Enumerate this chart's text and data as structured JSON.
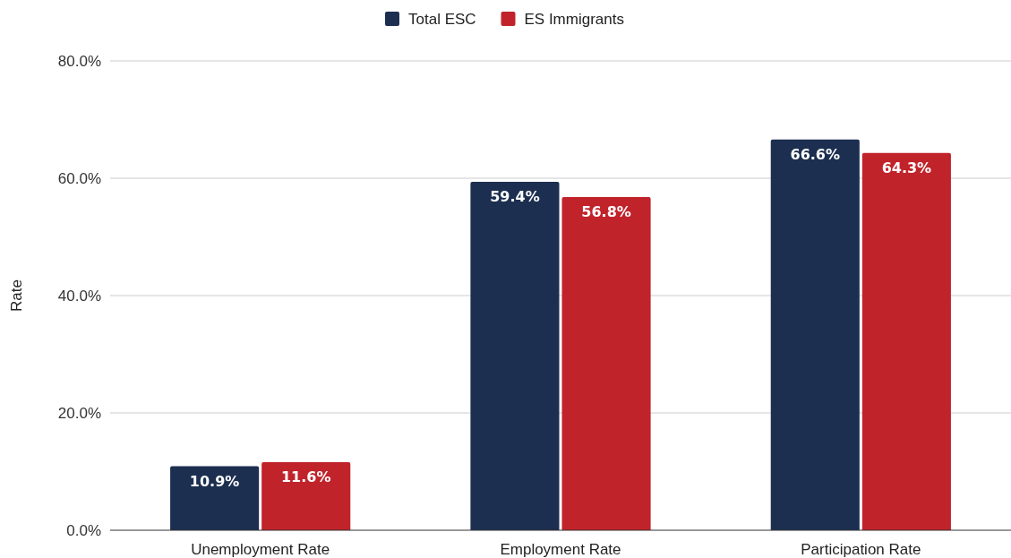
{
  "chart_data": {
    "type": "bar",
    "ylabel": "Rate",
    "categories": [
      "Unemployment Rate",
      "Employment Rate",
      "Participation Rate"
    ],
    "series": [
      {
        "name": "Total ESC",
        "color": "#1c2f50",
        "values": [
          10.9,
          59.4,
          66.6
        ],
        "value_labels": [
          "10.9%",
          "59.4%",
          "66.6%"
        ]
      },
      {
        "name": "ES Immigrants",
        "color": "#c1232a",
        "values": [
          11.6,
          56.8,
          64.3
        ],
        "value_labels": [
          "11.6%",
          "56.8%",
          "64.3%"
        ]
      }
    ],
    "ylim": [
      0,
      80
    ],
    "yticks": [
      {
        "value": 0,
        "label": "0.0%"
      },
      {
        "value": 20,
        "label": "20.0%"
      },
      {
        "value": 40,
        "label": "40.0%"
      },
      {
        "value": 60,
        "label": "60.0%"
      },
      {
        "value": 80,
        "label": "80.0%"
      }
    ],
    "grid": "y",
    "legend": "top"
  }
}
